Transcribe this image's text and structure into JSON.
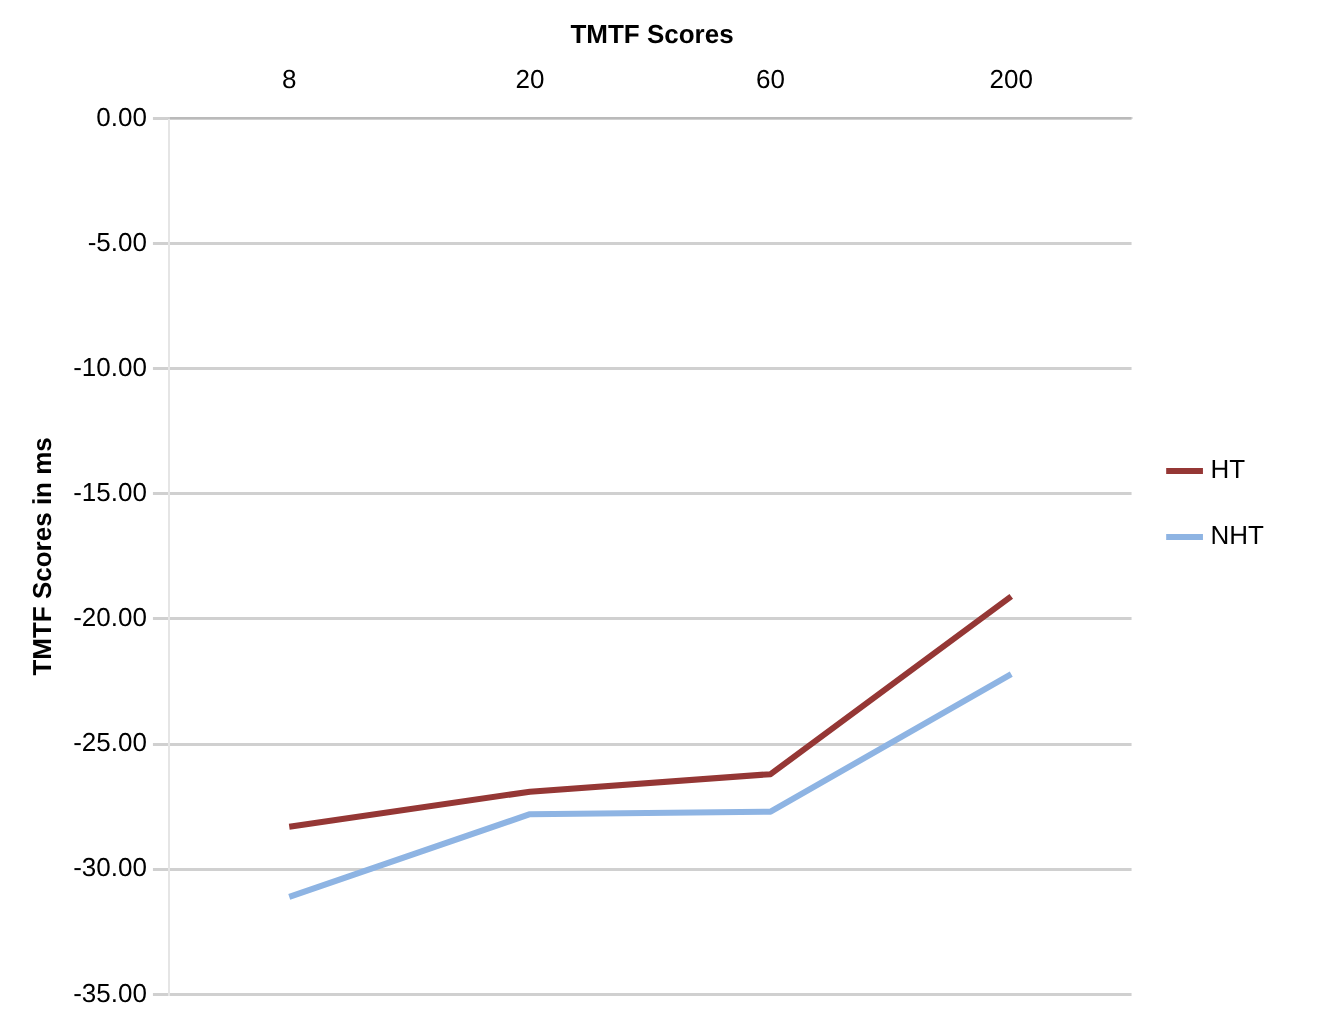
{
  "chart_data": {
    "type": "line",
    "title": "TMTF Scores",
    "ylabel": "TMTF Scores in ms",
    "categories": [
      "8",
      "20",
      "60",
      "200"
    ],
    "series": [
      {
        "name": "HT",
        "color": "#953735",
        "values": [
          -28.3,
          -26.9,
          -26.2,
          -19.1
        ]
      },
      {
        "name": "NHT",
        "color": "#8eb4e3",
        "values": [
          -31.1,
          -27.8,
          -27.7,
          -22.2
        ]
      }
    ],
    "ylim": [
      -35,
      0
    ],
    "yticks": [
      {
        "value": 0,
        "label": "0.00"
      },
      {
        "value": -5,
        "label": "-5.00"
      },
      {
        "value": -10,
        "label": "-10.00"
      },
      {
        "value": -15,
        "label": "-15.00"
      },
      {
        "value": -20,
        "label": "-20.00"
      },
      {
        "value": -25,
        "label": "-25.00"
      },
      {
        "value": -30,
        "label": "-30.00"
      },
      {
        "value": -35,
        "label": "-35.00"
      }
    ],
    "grid": "y",
    "legend": "right",
    "marker": "none",
    "line_style": "solid"
  }
}
